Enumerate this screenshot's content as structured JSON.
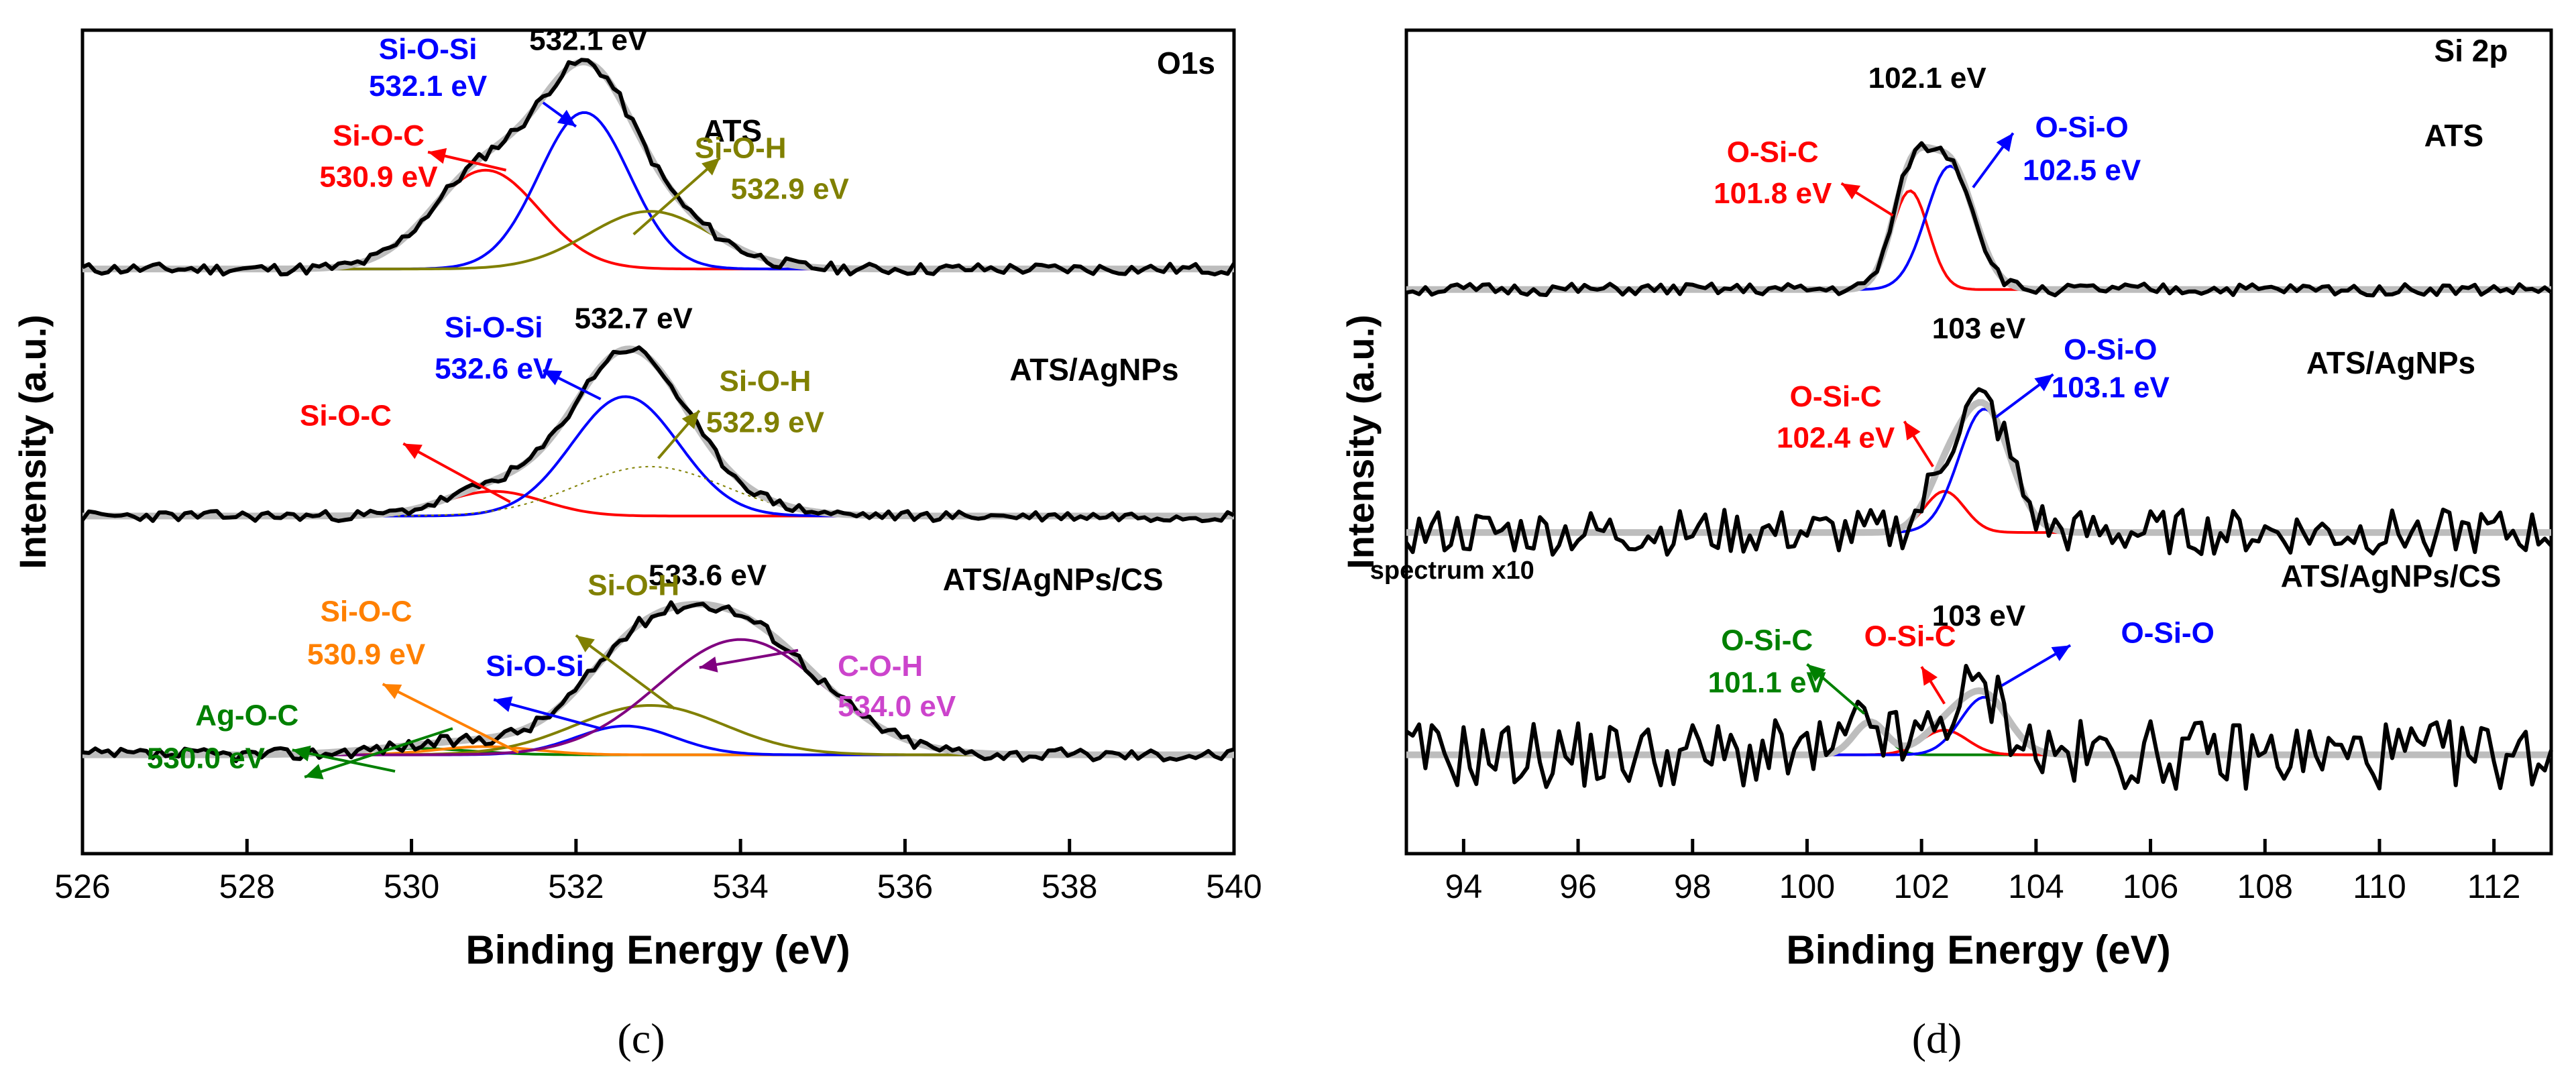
{
  "colors": {
    "raw": "#000000",
    "envelope": "#bdbdbd",
    "sio_c": "#ff0000",
    "siosi": "#0000ff",
    "sioh": "#808000",
    "ag": "#008000",
    "orange": "#ff8000",
    "coh": "#800080",
    "coh_text": "#cc44cc"
  },
  "chart_data": [
    {
      "id": "c",
      "type": "line",
      "caption": "(c)",
      "xlabel": "Binding Energy (eV)",
      "ylabel": "Intensity (a.u.)",
      "xlim": [
        526,
        540
      ],
      "xticks": [
        526,
        528,
        530,
        532,
        534,
        536,
        538,
        540
      ],
      "ylim": [
        0,
        100
      ],
      "element_label": "O1s",
      "series": [
        {
          "name": "ATS",
          "baseline": 71,
          "noise": 0.45,
          "seed": 11,
          "components": [
            {
              "name": "Si-O-C",
              "color": "#ff0000",
              "center": 530.9,
              "sigma": 0.65,
              "amp": 12
            },
            {
              "name": "Si-O-Si",
              "color": "#0000ff",
              "center": 532.1,
              "sigma": 0.55,
              "amp": 19
            },
            {
              "name": "Si-O-H",
              "color": "#808000",
              "center": 532.9,
              "sigma": 0.75,
              "amp": 7
            }
          ],
          "labels": [
            {
              "key": "sample",
              "text": "ATS",
              "color": "#000000",
              "x": 533.9,
              "y": 86.5,
              "size": 46
            },
            {
              "key": "peak",
              "text": "532.1 eV",
              "color": "#000000",
              "x": 532.15,
              "y": 97.6,
              "size": 44
            },
            {
              "key": "siosi_name",
              "text": "Si-O-Si",
              "color": "#0000ff",
              "x": 530.2,
              "y": 96.5,
              "size": 44
            },
            {
              "key": "siosi_val",
              "text": "532.1 eV",
              "color": "#0000ff",
              "x": 530.2,
              "y": 92.0,
              "size": 44
            },
            {
              "key": "sioc_name",
              "text": "Si-O-C",
              "color": "#ff0000",
              "x": 529.6,
              "y": 86.0,
              "size": 44
            },
            {
              "key": "sioc_val",
              "text": "530.9 eV",
              "color": "#ff0000",
              "x": 529.6,
              "y": 81.0,
              "size": 44
            },
            {
              "key": "sioh_name",
              "text": "Si-O-H",
              "color": "#808000",
              "x": 534.0,
              "y": 84.5,
              "size": 44
            },
            {
              "key": "sioh_val",
              "text": "532.9 eV",
              "color": "#808000",
              "x": 534.6,
              "y": 79.5,
              "size": 44
            }
          ],
          "arrows": [
            {
              "color": "#0000ff",
              "from": [
                531.6,
                91.2
              ],
              "to": [
                532.0,
                88.3
              ]
            },
            {
              "color": "#ff0000",
              "from": [
                531.15,
                83.0
              ],
              "to": [
                530.2,
                85.2
              ]
            },
            {
              "color": "#808000",
              "from": [
                532.7,
                75.2
              ],
              "to": [
                533.75,
                84.5
              ]
            }
          ]
        },
        {
          "name": "ATS/AgNPs",
          "baseline": 41,
          "noise": 0.4,
          "seed": 23,
          "components": [
            {
              "name": "Si-O-C",
              "color": "#ff0000",
              "center": 531.0,
              "sigma": 0.6,
              "amp": 3
            },
            {
              "name": "Si-O-Si",
              "color": "#0000ff",
              "center": 532.6,
              "sigma": 0.65,
              "amp": 14.5
            },
            {
              "name": "Si-O-H",
              "color": "#808000",
              "center": 532.9,
              "sigma": 0.9,
              "amp": 6,
              "dashed": true
            }
          ],
          "labels": [
            {
              "key": "sample",
              "text": "ATS/AgNPs",
              "color": "#000000",
              "x": 538.3,
              "y": 57.5,
              "size": 46
            },
            {
              "key": "peak",
              "text": "532.7 eV",
              "color": "#000000",
              "x": 532.7,
              "y": 63.8,
              "size": 44
            },
            {
              "key": "siosi_name",
              "text": "Si-O-Si",
              "color": "#0000ff",
              "x": 531.0,
              "y": 62.7,
              "size": 44
            },
            {
              "key": "siosi_val",
              "text": "532.6 eV",
              "color": "#0000ff",
              "x": 531.0,
              "y": 57.7,
              "size": 44
            },
            {
              "key": "sioc_name",
              "text": "Si-O-C",
              "color": "#ff0000",
              "x": 529.2,
              "y": 52.0,
              "size": 44
            },
            {
              "key": "sioh_name",
              "text": "Si-O-H",
              "color": "#808000",
              "x": 534.3,
              "y": 56.2,
              "size": 44
            },
            {
              "key": "sioh_val",
              "text": "532.9 eV",
              "color": "#808000",
              "x": 534.3,
              "y": 51.2,
              "size": 44
            }
          ],
          "arrows": [
            {
              "color": "#0000ff",
              "from": [
                532.3,
                55.2
              ],
              "to": [
                531.6,
                58.7
              ]
            },
            {
              "color": "#ff0000",
              "from": [
                531.2,
                42.7
              ],
              "to": [
                529.9,
                49.8
              ]
            },
            {
              "color": "#808000",
              "from": [
                533.0,
                48.0
              ],
              "to": [
                533.5,
                53.8
              ]
            }
          ]
        },
        {
          "name": "ATS/AgNPs/CS",
          "baseline": 12,
          "noise": 0.5,
          "seed": 37,
          "components": [
            {
              "name": "Ag-O-C",
              "color": "#008000",
              "center": 530.0,
              "sigma": 0.7,
              "amp": 0.8
            },
            {
              "name": "Si-O-C",
              "color": "#ff8000",
              "center": 530.9,
              "sigma": 0.6,
              "amp": 1
            },
            {
              "name": "Si-O-Si",
              "color": "#0000ff",
              "center": 532.6,
              "sigma": 0.6,
              "amp": 3.5
            },
            {
              "name": "Si-O-H",
              "color": "#808000",
              "center": 532.9,
              "sigma": 0.9,
              "amp": 6
            },
            {
              "name": "C-O-H",
              "color": "#800080",
              "center": 534.0,
              "sigma": 1.0,
              "amp": 14
            }
          ],
          "labels": [
            {
              "key": "sample",
              "text": "ATS/AgNPs/CS",
              "color": "#000000",
              "x": 537.8,
              "y": 32.0,
              "size": 46
            },
            {
              "key": "peak",
              "text": "533.6 eV",
              "color": "#000000",
              "x": 533.6,
              "y": 32.6,
              "size": 44
            },
            {
              "key": "agoc_name",
              "text": "Ag-O-C",
              "color": "#008000",
              "x": 528.0,
              "y": 15.6,
              "size": 44
            },
            {
              "key": "agoc_val",
              "text": "530.0 eV",
              "color": "#008000",
              "x": 527.5,
              "y": 10.4,
              "size": 44
            },
            {
              "key": "sioc_name",
              "text": "Si-O-C",
              "color": "#ff8000",
              "x": 529.45,
              "y": 28.2,
              "size": 44
            },
            {
              "key": "sioc_val",
              "text": "530.9 eV",
              "color": "#ff8000",
              "x": 529.45,
              "y": 23.0,
              "size": 44
            },
            {
              "key": "siosi_name",
              "text": "Si-O-Si",
              "color": "#0000ff",
              "x": 531.5,
              "y": 21.6,
              "size": 44
            },
            {
              "key": "sioh_name",
              "text": "Si-O-H",
              "color": "#808000",
              "x": 532.7,
              "y": 31.4,
              "size": 44
            },
            {
              "key": "coh_name",
              "text": "C-O-H",
              "color": "#cc44cc",
              "x": 535.7,
              "y": 21.6,
              "size": 44
            },
            {
              "key": "coh_val",
              "text": "534.0 eV",
              "color": "#cc44cc",
              "x": 535.9,
              "y": 16.7,
              "size": 44
            }
          ],
          "arrows": [
            {
              "color": "#008000",
              "from": [
                530.5,
                15.2
              ],
              "to": [
                528.7,
                9.3
              ]
            },
            {
              "color": "#008000",
              "from": [
                529.8,
                10.0
              ],
              "to": [
                528.55,
                12.6
              ]
            },
            {
              "color": "#ff8000",
              "from": [
                531.3,
                12.3
              ],
              "to": [
                529.65,
                20.6
              ]
            },
            {
              "color": "#0000ff",
              "from": [
                532.3,
                15.2
              ],
              "to": [
                531.0,
                18.7
              ]
            },
            {
              "color": "#808000",
              "from": [
                533.2,
                17.6
              ],
              "to": [
                532.0,
                26.5
              ]
            },
            {
              "color": "#800080",
              "from": [
                534.7,
                24.7
              ],
              "to": [
                533.5,
                22.6
              ]
            }
          ]
        }
      ]
    },
    {
      "id": "d",
      "type": "line",
      "caption": "(d)",
      "xlabel": "Binding Energy (eV)",
      "ylabel": "Intensity (a.u.)",
      "xlim": [
        93,
        113
      ],
      "xticks": [
        94,
        96,
        98,
        100,
        102,
        104,
        106,
        108,
        110,
        112
      ],
      "ylim": [
        0,
        100
      ],
      "element_label": "Si 2p",
      "note": "spectrum x10",
      "series": [
        {
          "name": "ATS",
          "baseline": 68.5,
          "noise": 0.45,
          "seed": 51,
          "components": [
            {
              "name": "O-Si-C",
              "color": "#ff0000",
              "center": 101.8,
              "sigma": 0.32,
              "amp": 12
            },
            {
              "name": "O-Si-O",
              "color": "#0000ff",
              "center": 102.5,
              "sigma": 0.42,
              "amp": 15
            }
          ],
          "labels": [
            {
              "key": "sample",
              "text": "ATS",
              "color": "#000000",
              "x": 111.3,
              "y": 85.9,
              "size": 46
            },
            {
              "key": "elem",
              "text": "Si 2p",
              "color": "#000000",
              "x": 111.6,
              "y": 96.2,
              "size": 46
            },
            {
              "key": "peak",
              "text": "102.1 eV",
              "color": "#000000",
              "x": 102.1,
              "y": 93.0,
              "size": 44
            },
            {
              "key": "oosi_name",
              "text": "O-Si-O",
              "color": "#0000ff",
              "x": 104.8,
              "y": 87.0,
              "size": 44
            },
            {
              "key": "oosi_val",
              "text": "102.5 eV",
              "color": "#0000ff",
              "x": 104.8,
              "y": 81.8,
              "size": 44
            },
            {
              "key": "osic_name",
              "text": "O-Si-C",
              "color": "#ff0000",
              "x": 99.4,
              "y": 84.0,
              "size": 44
            },
            {
              "key": "osic_val",
              "text": "101.8 eV",
              "color": "#ff0000",
              "x": 99.4,
              "y": 79.0,
              "size": 44
            }
          ],
          "arrows": [
            {
              "color": "#0000ff",
              "from": [
                102.9,
                80.9
              ],
              "to": [
                103.6,
                87.5
              ]
            },
            {
              "color": "#ff0000",
              "from": [
                101.5,
                77.5
              ],
              "to": [
                100.6,
                81.4
              ]
            }
          ]
        },
        {
          "name": "ATS/AgNPs",
          "baseline": 39,
          "noise": 0.8,
          "seed": 77,
          "components": [
            {
              "name": "O-Si-C",
              "color": "#ff0000",
              "center": 102.4,
              "sigma": 0.35,
              "amp": 5
            },
            {
              "name": "O-Si-O",
              "color": "#0000ff",
              "center": 103.1,
              "sigma": 0.45,
              "amp": 15
            }
          ],
          "labels": [
            {
              "key": "sample",
              "text": "ATS/AgNPs",
              "color": "#000000",
              "x": 110.2,
              "y": 58.3,
              "size": 46
            },
            {
              "key": "peak",
              "text": "103 eV",
              "color": "#000000",
              "x": 103.0,
              "y": 62.6,
              "size": 44
            },
            {
              "key": "oosi_name",
              "text": "O-Si-O",
              "color": "#0000ff",
              "x": 105.3,
              "y": 60.0,
              "size": 44
            },
            {
              "key": "oosi_val",
              "text": "103.1 eV",
              "color": "#0000ff",
              "x": 105.3,
              "y": 55.4,
              "size": 44
            },
            {
              "key": "osic_name",
              "text": "O-Si-C",
              "color": "#ff0000",
              "x": 100.5,
              "y": 54.3,
              "size": 44
            },
            {
              "key": "osic_val",
              "text": "102.4 eV",
              "color": "#ff0000",
              "x": 100.5,
              "y": 49.3,
              "size": 44
            }
          ],
          "arrows": [
            {
              "color": "#0000ff",
              "from": [
                103.3,
                53.0
              ],
              "to": [
                104.3,
                58.2
              ]
            },
            {
              "color": "#ff0000",
              "from": [
                102.2,
                47.0
              ],
              "to": [
                101.7,
                52.5
              ]
            }
          ]
        },
        {
          "name": "ATS/AgNPs/CS",
          "baseline": 12,
          "noise": 1.2,
          "seed": 91,
          "components": [
            {
              "name": "O-Si-C (green)",
              "color": "#008000",
              "center": 101.1,
              "sigma": 0.28,
              "amp": 4
            },
            {
              "name": "O-Si-C",
              "color": "#ff0000",
              "center": 102.4,
              "sigma": 0.4,
              "amp": 3
            },
            {
              "name": "O-Si-O",
              "color": "#0000ff",
              "center": 103.1,
              "sigma": 0.42,
              "amp": 7
            }
          ],
          "labels": [
            {
              "key": "sample",
              "text": "ATS/AgNPs/CS",
              "color": "#000000",
              "x": 110.2,
              "y": 32.4,
              "size": 46
            },
            {
              "key": "note",
              "text": "spectrum x10",
              "color": "#000000",
              "x": 93.8,
              "y": 33.4,
              "size": 38
            },
            {
              "key": "peak",
              "text": "103 eV",
              "color": "#000000",
              "x": 103.0,
              "y": 27.7,
              "size": 44
            },
            {
              "key": "green_name",
              "text": "O-Si-C",
              "color": "#008000",
              "x": 99.3,
              "y": 24.7,
              "size": 44
            },
            {
              "key": "green_val",
              "text": "101.1 eV",
              "color": "#008000",
              "x": 99.3,
              "y": 19.6,
              "size": 44
            },
            {
              "key": "osic_name",
              "text": "O-Si-C",
              "color": "#ff0000",
              "x": 101.8,
              "y": 25.2,
              "size": 44
            },
            {
              "key": "oosi_name",
              "text": "O-Si-O",
              "color": "#0000ff",
              "x": 106.3,
              "y": 25.6,
              "size": 44
            }
          ],
          "arrows": [
            {
              "color": "#008000",
              "from": [
                101.0,
                17.0
              ],
              "to": [
                100.0,
                23.0
              ]
            },
            {
              "color": "#ff0000",
              "from": [
                102.4,
                18.2
              ],
              "to": [
                102.0,
                22.7
              ]
            },
            {
              "color": "#0000ff",
              "from": [
                103.4,
                20.4
              ],
              "to": [
                104.6,
                25.3
              ]
            }
          ]
        }
      ]
    }
  ]
}
